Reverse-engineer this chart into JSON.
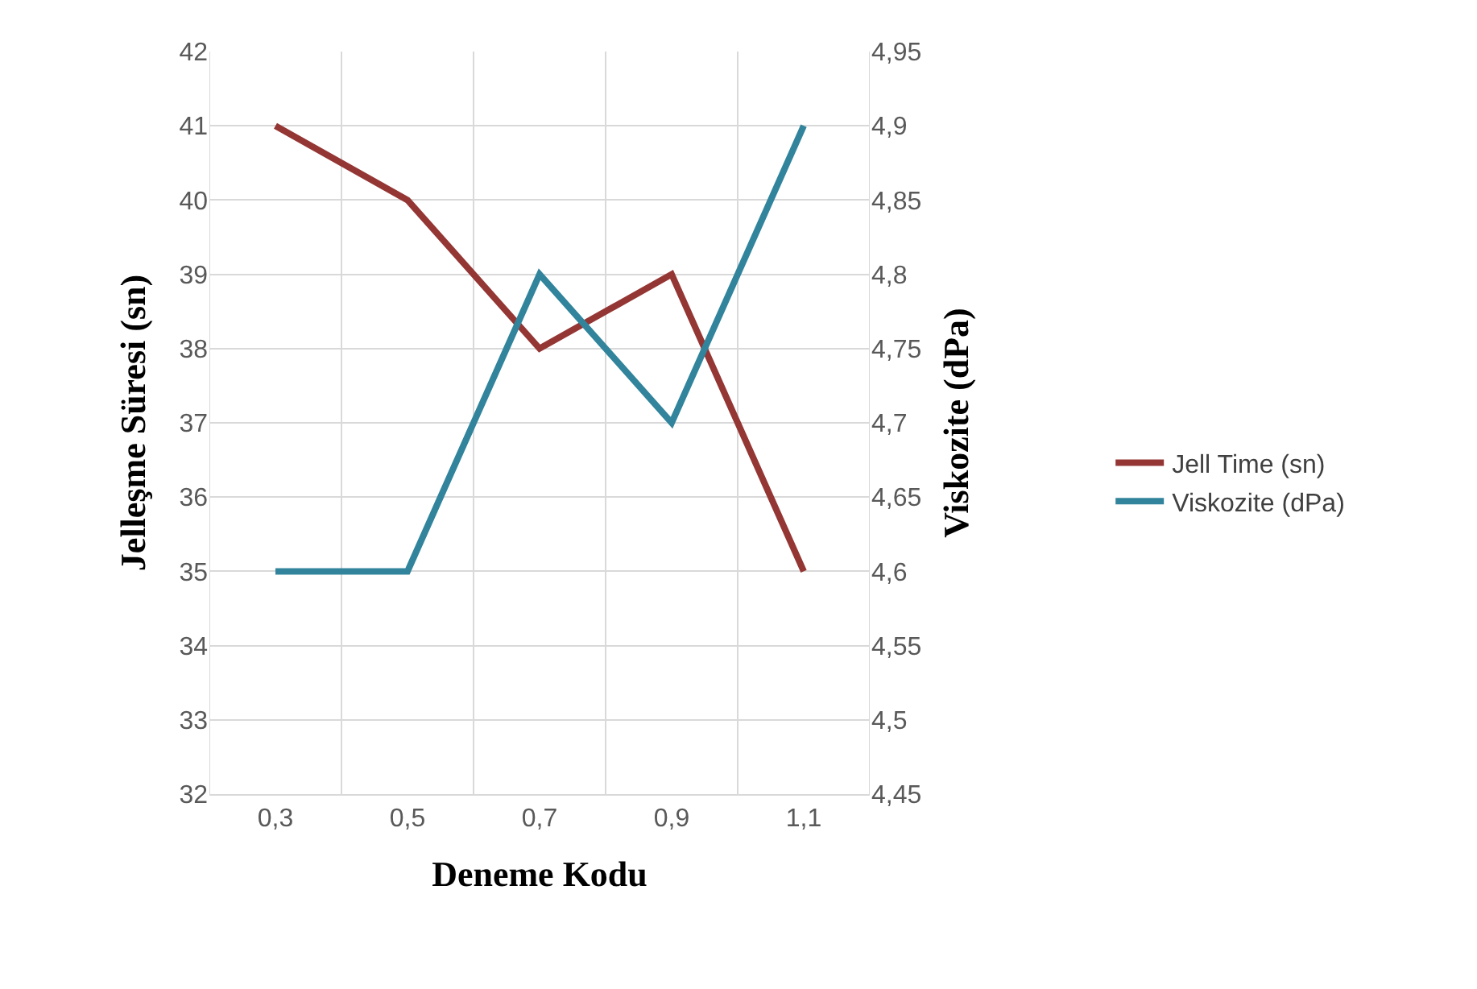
{
  "chart_data": {
    "type": "line",
    "xlabel": "Deneme Kodu",
    "ylabel": "Jelleşme Süresi (sn)",
    "y2label": "Viskozite (dPa)",
    "categories": [
      "0,3",
      "0,5",
      "0,7",
      "0,9",
      "1,1"
    ],
    "series": [
      {
        "name": "Jell Time (sn)",
        "color": "#943634",
        "values": [
          41,
          40,
          38,
          39,
          35
        ]
      },
      {
        "name": "Viskozite (dPa)",
        "color": "#31849b",
        "values": [
          4.6,
          4.6,
          4.8,
          4.7,
          4.9
        ],
        "axis": "y2"
      }
    ],
    "ylim": [
      32,
      42
    ],
    "yticks": [
      32,
      33,
      34,
      35,
      36,
      37,
      38,
      39,
      40,
      41,
      42
    ],
    "y2lim": [
      4.45,
      4.95
    ],
    "y2ticks": [
      {
        "value": 4.45,
        "label": "4,45"
      },
      {
        "value": 4.5,
        "label": "4,5"
      },
      {
        "value": 4.55,
        "label": "4,55"
      },
      {
        "value": 4.6,
        "label": "4,6"
      },
      {
        "value": 4.65,
        "label": "4,65"
      },
      {
        "value": 4.7,
        "label": "4,7"
      },
      {
        "value": 4.75,
        "label": "4,75"
      },
      {
        "value": 4.8,
        "label": "4,8"
      },
      {
        "value": 4.85,
        "label": "4,85"
      },
      {
        "value": 4.9,
        "label": "4,9"
      },
      {
        "value": 4.95,
        "label": "4,95"
      }
    ],
    "grid": true,
    "legend": "right",
    "marker": "none",
    "line_style": "solid"
  }
}
